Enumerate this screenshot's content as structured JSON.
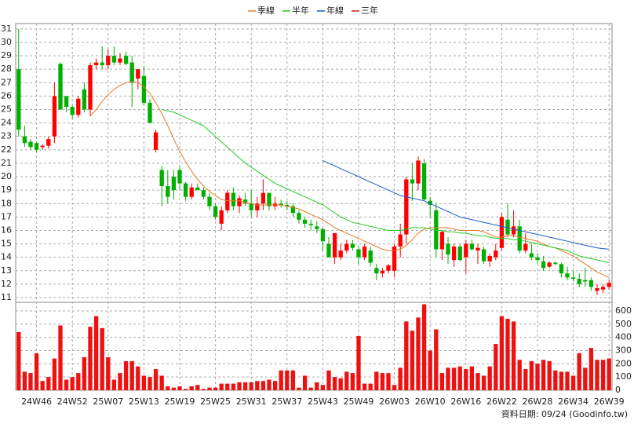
{
  "chart_data": [
    {
      "type": "candlestick",
      "categories": [
        null,
        null,
        null,
        "24W46",
        null,
        null,
        null,
        null,
        null,
        "24W52",
        null,
        null,
        null,
        null,
        null,
        "25W07",
        null,
        null,
        null,
        null,
        null,
        "25W13",
        null,
        null,
        null,
        null,
        null,
        "25W19",
        null,
        null,
        null,
        null,
        null,
        "25W25",
        null,
        null,
        null,
        null,
        null,
        "25W31",
        null,
        null,
        null,
        null,
        null,
        "25W37",
        null,
        null,
        null,
        null,
        null,
        "25W43",
        null,
        null,
        null,
        null,
        null,
        "25W49",
        null,
        null,
        null,
        null,
        null,
        "26W03",
        null,
        null,
        null,
        null,
        null,
        "26W10",
        null,
        null,
        null,
        null,
        null,
        "26W16",
        null,
        null,
        null,
        null,
        null,
        "26W22",
        null,
        null,
        null,
        null,
        null,
        "26W28",
        null,
        null,
        null,
        null,
        null,
        "26W34",
        null,
        null,
        null,
        null,
        null,
        "26W39"
      ],
      "open": [
        28,
        23,
        22.6,
        22.5,
        22.2,
        22.3,
        23,
        28.4,
        26,
        25.2,
        24.6,
        26.5,
        25,
        28.3,
        28.5,
        28.3,
        29,
        28.5,
        29,
        28.5,
        27.3,
        27.5,
        25.5,
        22,
        20.5,
        19.3,
        20,
        20.5,
        19.5,
        18.5,
        19.2,
        19,
        18.5,
        17.8,
        16.5,
        17.5,
        18.8,
        17.8,
        18.3,
        18,
        17.5,
        18,
        18.8,
        17.8,
        18,
        17.9,
        17.8,
        17.3,
        16.8,
        16.5,
        16.3,
        16.1,
        15,
        14,
        14,
        14.5,
        15,
        14.6,
        14,
        14.5,
        13.2,
        12.8,
        13,
        13,
        14.8,
        15.7,
        19.8,
        19.5,
        21,
        18.2,
        17.5,
        14.6,
        15,
        13.8,
        14.8,
        14,
        15,
        14.5,
        14.6,
        13.7,
        14,
        14.7,
        16.8,
        15.7,
        16.3,
        14.5,
        14.3,
        14,
        13.7,
        13.3,
        13.6,
        13.5,
        12.8,
        12.5,
        12.4,
        12.3,
        12.3,
        11.5,
        11.6,
        11.8
      ],
      "high": [
        31,
        23.8,
        22.8,
        22.6,
        22.4,
        23,
        27,
        28.5,
        26,
        25.3,
        26,
        27,
        28.5,
        28.8,
        29.7,
        29.5,
        29.7,
        29.2,
        29.3,
        29,
        28,
        28.2,
        25.8,
        23.5,
        20.8,
        20.5,
        20.5,
        20.8,
        19.6,
        19.5,
        19.5,
        19.2,
        18.8,
        18,
        17.8,
        19,
        19.2,
        18.6,
        18.8,
        19,
        18.5,
        19.8,
        18.8,
        18.5,
        18.3,
        18.2,
        18,
        17.5,
        17,
        16.8,
        16.7,
        16.2,
        15.5,
        15.8,
        15,
        15.3,
        15.3,
        14.8,
        15,
        14.8,
        13.5,
        13.2,
        13.5,
        15,
        16.5,
        20,
        21,
        21.5,
        21.3,
        18.5,
        18,
        16,
        15.5,
        15,
        15,
        15.3,
        15.3,
        15,
        14.8,
        14.3,
        15,
        17.3,
        18,
        17.5,
        16.8,
        15.8,
        15,
        14.3,
        14.1,
        13.7,
        13.7,
        13.6,
        13.3,
        13,
        12.8,
        13.2,
        12.5,
        12,
        12,
        12.3
      ],
      "low": [
        23,
        22.2,
        22,
        21.8,
        22,
        22.1,
        22.5,
        25,
        24.8,
        24.3,
        24.4,
        24.8,
        24.5,
        28,
        28,
        28,
        28.3,
        28.3,
        28.3,
        25.2,
        26.5,
        25.3,
        24,
        21.8,
        17.8,
        18,
        18.3,
        19,
        18.2,
        18.3,
        19,
        18.3,
        17.5,
        16.8,
        16,
        17.3,
        17.5,
        17.3,
        17.8,
        17,
        17,
        17.5,
        17.5,
        17.5,
        17.7,
        17.5,
        17,
        16.5,
        16.2,
        16,
        15.8,
        14.5,
        14,
        13.5,
        13.8,
        14.3,
        14.5,
        13.5,
        13.8,
        13.3,
        12.3,
        12.5,
        12.8,
        12.5,
        14,
        15,
        18.2,
        19,
        18.2,
        17,
        14,
        13.8,
        13.5,
        13.3,
        13.7,
        12.8,
        14.5,
        13.5,
        13.5,
        13.3,
        13.8,
        14.5,
        15.5,
        15.5,
        14.3,
        14.3,
        13.8,
        13.5,
        13,
        13.2,
        13.4,
        12.5,
        12.3,
        12.2,
        11.8,
        11.8,
        11.5,
        11.2,
        11.3,
        11.6
      ],
      "close": [
        23.5,
        22.5,
        22.2,
        22,
        22.3,
        22.8,
        26,
        25,
        25.2,
        24.6,
        25.8,
        25,
        28.3,
        28.5,
        28.3,
        29,
        28.5,
        28.8,
        28.4,
        27,
        28,
        25.5,
        24,
        23.3,
        19.3,
        18.5,
        19,
        19.5,
        18.5,
        19.2,
        19,
        18.5,
        17.8,
        17,
        17.5,
        18.8,
        17.8,
        18.4,
        18,
        17.5,
        18,
        18.8,
        17.8,
        18,
        17.9,
        17.8,
        17.3,
        16.8,
        16.5,
        16.4,
        16.1,
        15.2,
        14,
        15.8,
        14.5,
        15,
        14.7,
        14,
        14.8,
        13.6,
        12.8,
        13,
        13.4,
        14.8,
        15.7,
        19.8,
        19.5,
        21.2,
        18.3,
        17.9,
        14.6,
        15.9,
        14.2,
        14.8,
        13.8,
        15,
        14.6,
        14.7,
        13.7,
        14.1,
        14.5,
        17,
        15.7,
        16.3,
        14.5,
        15,
        14,
        13.8,
        13.2,
        13.6,
        13.5,
        12.8,
        12.5,
        12.4,
        12,
        12.2,
        11.8,
        11.7,
        11.8,
        12.1
      ],
      "up_color": "#ff0000",
      "down_color": "#00b000",
      "series": [
        {
          "name": "季線",
          "color": "#e8782a",
          "values": [
            null,
            null,
            null,
            null,
            null,
            null,
            null,
            null,
            null,
            null,
            null,
            null,
            24.5,
            25,
            25.6,
            26.1,
            26.5,
            26.8,
            27,
            27.1,
            27,
            26.7,
            26.2,
            25.5,
            24.7,
            23.8,
            22.8,
            21.9,
            21.1,
            20.4,
            19.8,
            19.3,
            18.9,
            18.6,
            18.3,
            18.2,
            18.2,
            18.2,
            18.1,
            18,
            17.9,
            17.9,
            17.9,
            17.9,
            17.9,
            17.8,
            17.7,
            17.6,
            17.4,
            17.2,
            17,
            16.8,
            16.5,
            16.2,
            16,
            15.8,
            15.6,
            15.4,
            15.2,
            15,
            14.8,
            14.6,
            14.5,
            14.5,
            14.6,
            14.9,
            15.3,
            15.8,
            16.1,
            16.2,
            16.2,
            16.2,
            16.2,
            16.1,
            16,
            16,
            16,
            16,
            15.9,
            15.7,
            15.5,
            15.5,
            15.6,
            15.6,
            15.5,
            15.4,
            15.3,
            15.2,
            15,
            14.8,
            14.7,
            14.5,
            14.3,
            14.1,
            13.8,
            13.5,
            13.2,
            12.9,
            12.7,
            12.5
          ]
        },
        {
          "name": "半年",
          "color": "#22cc22",
          "values": [
            null,
            null,
            null,
            null,
            null,
            null,
            null,
            null,
            null,
            null,
            null,
            null,
            null,
            null,
            null,
            null,
            null,
            null,
            null,
            null,
            null,
            null,
            null,
            null,
            25,
            24.9,
            24.8,
            24.6,
            24.4,
            24.2,
            24,
            23.8,
            23.4,
            23,
            22.6,
            22.2,
            21.8,
            21.4,
            21,
            20.7,
            20.4,
            20.1,
            19.8,
            19.5,
            19.3,
            19.1,
            18.9,
            18.7,
            18.5,
            18.3,
            18.1,
            17.9,
            17.6,
            17.3,
            17,
            16.8,
            16.6,
            16.5,
            16.4,
            16.3,
            16.2,
            16.1,
            16,
            16,
            16,
            16.1,
            16.2,
            16.2,
            16.2,
            16.1,
            16,
            16,
            15.9,
            15.9,
            15.8,
            15.8,
            15.7,
            15.6,
            15.6,
            15.5,
            15.4,
            15.4,
            15.4,
            15.3,
            15.3,
            15.2,
            15.1,
            15,
            14.9,
            14.8,
            14.7,
            14.6,
            14.5,
            14.3,
            14.1,
            14,
            13.9,
            13.8,
            13.7,
            13.6
          ]
        },
        {
          "name": "年線",
          "color": "#1a5cc8",
          "values": [
            null,
            null,
            null,
            null,
            null,
            null,
            null,
            null,
            null,
            null,
            null,
            null,
            null,
            null,
            null,
            null,
            null,
            null,
            null,
            null,
            null,
            null,
            null,
            null,
            null,
            null,
            null,
            null,
            null,
            null,
            null,
            null,
            null,
            null,
            null,
            null,
            null,
            null,
            null,
            null,
            null,
            null,
            null,
            null,
            null,
            null,
            null,
            null,
            null,
            null,
            null,
            21.2,
            21,
            20.8,
            20.6,
            20.4,
            20.2,
            20,
            19.8,
            19.6,
            19.4,
            19.2,
            19,
            18.8,
            18.6,
            18.5,
            18.4,
            18.3,
            18.2,
            18,
            17.8,
            17.6,
            17.4,
            17.2,
            17,
            16.9,
            16.8,
            16.7,
            16.6,
            16.5,
            16.4,
            16.3,
            16.2,
            16.1,
            16,
            15.9,
            15.8,
            15.7,
            15.6,
            15.5,
            15.4,
            15.3,
            15.2,
            15.1,
            15,
            14.9,
            14.8,
            14.7,
            14.65,
            14.6
          ]
        },
        {
          "name": "三年",
          "color": "#cc2020",
          "values": [
            null,
            null,
            null,
            null,
            null,
            null,
            null,
            null,
            null,
            null,
            null,
            null,
            null,
            null,
            null,
            null,
            null,
            null,
            null,
            null,
            null,
            null,
            null,
            null,
            null,
            null,
            null,
            null,
            null,
            null,
            null,
            null,
            null,
            null,
            null,
            null,
            null,
            null,
            null,
            null,
            null,
            null,
            null,
            null,
            null,
            null,
            null,
            null,
            null,
            null,
            null,
            null,
            null,
            null,
            null,
            null,
            null,
            null,
            null,
            null,
            null,
            null,
            null,
            null,
            null,
            null,
            null,
            null,
            null,
            null,
            null,
            null,
            null,
            null,
            null,
            null,
            null,
            null,
            null,
            null,
            null,
            null,
            null,
            null,
            null,
            null,
            null,
            null,
            null,
            null,
            null,
            null,
            null,
            null,
            null,
            null,
            null,
            null,
            null,
            null
          ]
        }
      ],
      "ylim": [
        10.65,
        31.4
      ],
      "yticks": [
        11,
        12,
        13,
        14,
        15,
        16,
        17,
        18,
        19,
        20,
        21,
        22,
        23,
        24,
        25,
        26,
        27,
        28,
        29,
        30,
        31
      ],
      "grid": true
    },
    {
      "type": "bar",
      "color": "#ee1111",
      "values": [
        440,
        140,
        130,
        280,
        70,
        100,
        240,
        490,
        80,
        100,
        130,
        250,
        480,
        560,
        470,
        250,
        80,
        130,
        220,
        220,
        180,
        110,
        100,
        160,
        110,
        30,
        20,
        30,
        10,
        30,
        40,
        10,
        20,
        20,
        50,
        50,
        50,
        60,
        60,
        60,
        70,
        70,
        80,
        70,
        150,
        150,
        150,
        20,
        110,
        20,
        60,
        40,
        150,
        100,
        90,
        140,
        130,
        410,
        50,
        50,
        140,
        130,
        130,
        40,
        170,
        520,
        450,
        550,
        650,
        300,
        460,
        130,
        170,
        170,
        180,
        160,
        180,
        130,
        110,
        180,
        350,
        560,
        540,
        520,
        230,
        160,
        220,
        200,
        230,
        220,
        150,
        140,
        140,
        110,
        280,
        170,
        320,
        230,
        230,
        240
      ],
      "ylim": [
        0,
        665
      ],
      "yticks": [
        0,
        100,
        200,
        300,
        400,
        500,
        600
      ],
      "grid": true
    }
  ],
  "footer": "資料日期: 09/24  (Goodinfo.tw)"
}
